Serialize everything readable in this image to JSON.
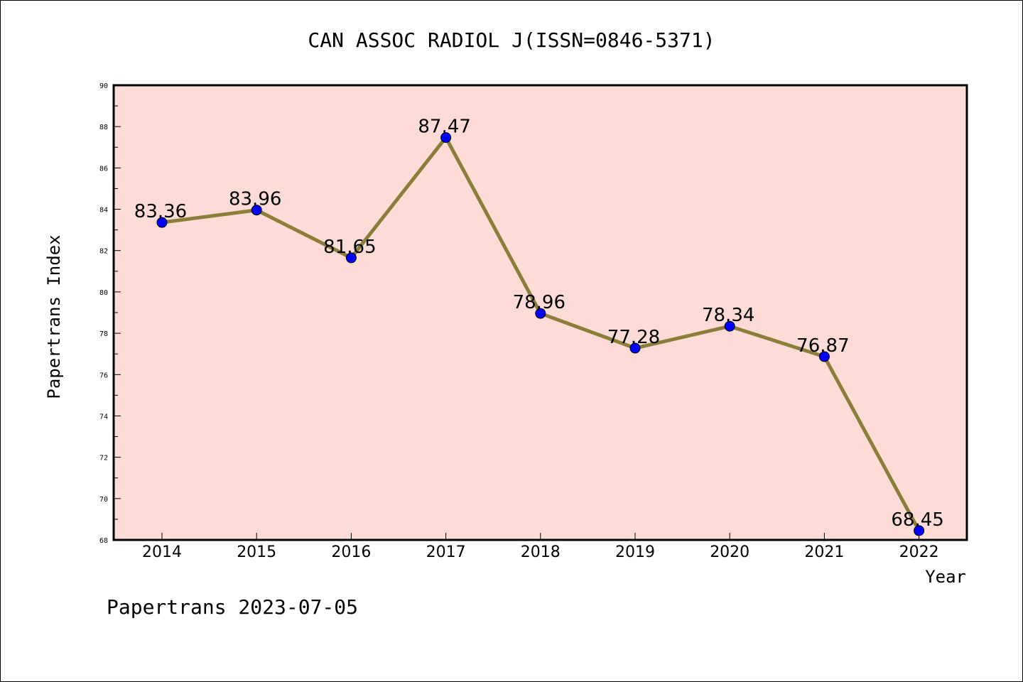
{
  "chart_data": {
    "type": "line",
    "title": "CAN ASSOC RADIOL J(ISSN=0846-5371)",
    "xlabel": "Year",
    "ylabel": "Papertrans Index",
    "x": [
      "2014",
      "2015",
      "2016",
      "2017",
      "2018",
      "2019",
      "2020",
      "2021",
      "2022"
    ],
    "series": [
      {
        "values": [
          83.36,
          83.96,
          81.65,
          87.47,
          78.96,
          77.28,
          78.34,
          76.87,
          68.45
        ],
        "line_color": "#8b7d3a",
        "marker_color": "#0000ff"
      }
    ],
    "data_labels": [
      "83.36",
      "83.96",
      "81.65",
      "87.47",
      "78.96",
      "77.28",
      "78.34",
      "76.87",
      "68.45"
    ],
    "ylim": [
      68,
      90
    ],
    "yticks": [
      68,
      70,
      72,
      74,
      76,
      78,
      80,
      82,
      84,
      86,
      88,
      90
    ],
    "plot_background": "#fddcd8",
    "grid": false,
    "legend": "none"
  },
  "footer": "Papertrans 2023-07-05"
}
